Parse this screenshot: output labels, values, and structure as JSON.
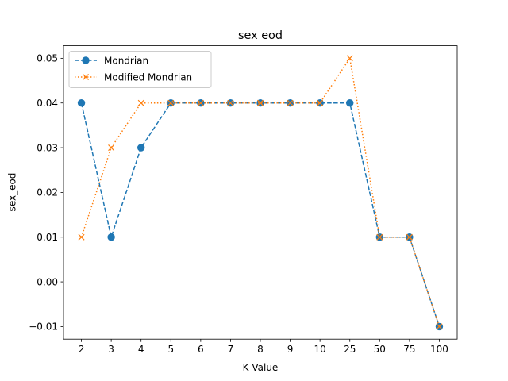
{
  "chart_data": {
    "type": "line",
    "title": "sex eod",
    "xlabel": "K Value",
    "ylabel": "sex_eod",
    "categories": [
      "2",
      "3",
      "4",
      "5",
      "6",
      "7",
      "8",
      "9",
      "10",
      "25",
      "50",
      "75",
      "100"
    ],
    "ylim": [
      -0.0128,
      0.0528
    ],
    "yticks": [
      -0.01,
      0.0,
      0.01,
      0.02,
      0.03,
      0.04,
      0.05
    ],
    "ytick_labels": [
      "−0.01",
      "0.00",
      "0.01",
      "0.02",
      "0.03",
      "0.04",
      "0.05"
    ],
    "grid": false,
    "legend_position": "top-left",
    "series": [
      {
        "name": "Mondrian",
        "values": [
          0.04,
          0.01,
          0.03,
          0.04,
          0.04,
          0.04,
          0.04,
          0.04,
          0.04,
          0.04,
          0.01,
          0.01,
          -0.01
        ],
        "color": "#1f77b4",
        "line_style": "dashed",
        "marker": "circle"
      },
      {
        "name": "Modified Mondrian",
        "values": [
          0.01,
          0.03,
          0.04,
          0.04,
          0.04,
          0.04,
          0.04,
          0.04,
          0.04,
          0.05,
          0.01,
          0.01,
          -0.01
        ],
        "color": "#ff7f0e",
        "line_style": "dotted",
        "marker": "x"
      }
    ]
  }
}
